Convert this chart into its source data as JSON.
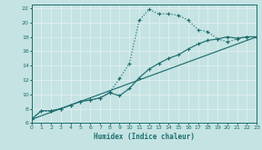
{
  "xlabel": "Humidex (Indice chaleur)",
  "bg_color": "#c5e3e3",
  "grid_color": "#e0f0f0",
  "line_color": "#1e6e6e",
  "xlim": [
    0,
    23
  ],
  "ylim": [
    6,
    22.5
  ],
  "xticks": [
    0,
    1,
    2,
    3,
    4,
    5,
    6,
    7,
    8,
    9,
    10,
    11,
    12,
    13,
    14,
    15,
    16,
    17,
    18,
    19,
    20,
    21,
    22,
    23
  ],
  "yticks": [
    6,
    8,
    10,
    12,
    14,
    16,
    18,
    20,
    22
  ],
  "curve1_x": [
    0,
    1,
    2,
    3,
    4,
    5,
    6,
    7,
    8,
    9,
    10,
    11,
    12,
    13,
    14,
    15,
    16,
    17,
    18,
    19,
    20,
    21,
    22,
    23
  ],
  "curve1_y": [
    6.5,
    7.7,
    7.7,
    8.0,
    8.5,
    9.0,
    9.2,
    9.5,
    10.3,
    12.2,
    14.3,
    20.3,
    21.8,
    21.2,
    21.2,
    21.0,
    20.3,
    19.0,
    18.7,
    17.7,
    17.3,
    17.7,
    18.0,
    18.0
  ],
  "curve2_x": [
    0,
    1,
    2,
    3,
    4,
    5,
    6,
    7,
    8,
    9,
    10,
    11,
    12,
    13,
    14,
    15,
    16,
    17,
    18,
    19,
    20,
    21,
    22,
    23
  ],
  "curve2_y": [
    6.5,
    7.7,
    7.7,
    8.0,
    8.5,
    9.0,
    9.2,
    9.5,
    10.2,
    9.8,
    10.8,
    12.3,
    13.5,
    14.3,
    15.0,
    15.5,
    16.3,
    17.0,
    17.5,
    17.7,
    18.0,
    17.8,
    18.0,
    18.0
  ],
  "line3_x": [
    0,
    23
  ],
  "line3_y": [
    6.5,
    18.0
  ]
}
